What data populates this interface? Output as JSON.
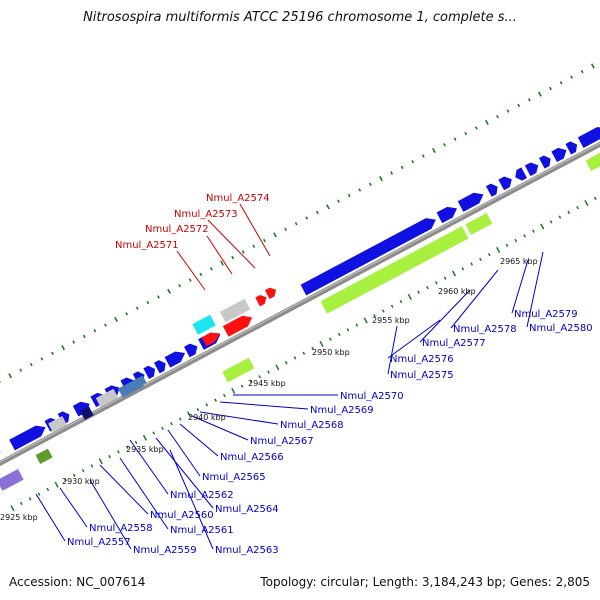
{
  "title": "Nitrosospira multiformis ATCC 25196 chromosome 1, complete s...",
  "footer": {
    "accession": "Accession: NC_007614",
    "summary": "Topology: circular; Length: 3,184,243 bp; Genes: 2,805"
  },
  "ticks": [
    {
      "label": "2925 kbp",
      "kbp": 2925
    },
    {
      "label": "2930 kbp",
      "kbp": 2930
    },
    {
      "label": "2935 kbp",
      "kbp": 2935
    },
    {
      "label": "2940 kbp",
      "kbp": 2940
    },
    {
      "label": "2945 kbp",
      "kbp": 2945
    },
    {
      "label": "2950 kbp",
      "kbp": 2950
    },
    {
      "label": "2955 kbp",
      "kbp": 2955
    },
    {
      "label": "2960 kbp",
      "kbp": 2960
    },
    {
      "label": "2965 kbp",
      "kbp": 2965
    }
  ],
  "red_labels": [
    "Nmul_A2574",
    "Nmul_A2573",
    "Nmul_A2572",
    "Nmul_A2571"
  ],
  "blue_labels": [
    "Nmul_A2570",
    "Nmul_A2569",
    "Nmul_A2568",
    "Nmul_A2567",
    "Nmul_A2566",
    "Nmul_A2565",
    "Nmul_A2564",
    "Nmul_A2563",
    "Nmul_A2562",
    "Nmul_A2561",
    "Nmul_A2560",
    "Nmul_A2559",
    "Nmul_A2558",
    "Nmul_A2557",
    "Nmul_A2576",
    "Nmul_A2575",
    "Nmul_A2577",
    "Nmul_A2578",
    "Nmul_A2579",
    "Nmul_A2580"
  ],
  "colors": {
    "backbone": "#8c8c8c",
    "cds": "#1010e0",
    "highlight_gene": "#ff1010",
    "cyan_gene": "#19e6f0",
    "grey_gene": "#c8c8c8",
    "rna_bar": "#a8f040",
    "olive_bar": "#5f9a2a",
    "steel_gene": "#4a7cb8",
    "purple_bar": "#8a70d8",
    "navy_gene": "#101070",
    "ticks": "#1a7a1a",
    "red_label": "#cc0000",
    "blue_label": "#0000cc"
  }
}
